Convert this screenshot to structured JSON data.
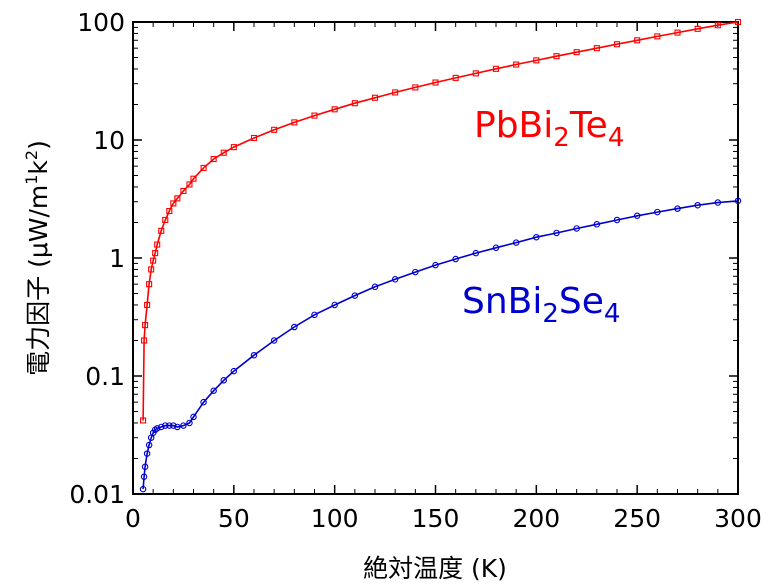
{
  "chart_data": {
    "type": "line",
    "xlabel": "絶対温度 (K)",
    "ylabel": "電力因子 (μW/m¹k²)",
    "ylabel_parts": {
      "prefix": "電力因子 (μW/m",
      "sup1": "1",
      "mid": "k",
      "sup2": "2",
      "suffix": ")"
    },
    "xlim": [
      0,
      300
    ],
    "ylim": [
      0.01,
      100
    ],
    "yscale": "log",
    "x_ticks": [
      "0",
      "50",
      "100",
      "150",
      "200",
      "250",
      "300"
    ],
    "y_ticks": [
      "0.01",
      "0.1",
      "1",
      "10",
      "100"
    ],
    "grid": false,
    "series": [
      {
        "name": "PbBi2Te4",
        "label_parts": [
          "PbBi",
          "2",
          "Te",
          "4"
        ],
        "color": "#ff0000",
        "x": [
          5,
          5.5,
          6,
          7,
          8,
          9,
          10,
          11,
          12,
          14,
          16,
          18,
          20,
          22,
          25,
          28,
          30,
          35,
          40,
          45,
          50,
          60,
          70,
          80,
          90,
          100,
          110,
          120,
          130,
          140,
          150,
          160,
          170,
          180,
          190,
          200,
          210,
          220,
          230,
          240,
          250,
          260,
          270,
          280,
          290,
          300
        ],
        "y": [
          0.042,
          0.2,
          0.27,
          0.4,
          0.6,
          0.8,
          0.95,
          1.1,
          1.3,
          1.7,
          2.1,
          2.5,
          2.9,
          3.2,
          3.7,
          4.2,
          4.7,
          5.8,
          6.9,
          7.8,
          8.7,
          10.4,
          12.2,
          14.1,
          16.1,
          18.2,
          20.5,
          22.8,
          25.3,
          27.9,
          30.7,
          33.6,
          36.7,
          40.1,
          43.6,
          47.3,
          51.3,
          55.5,
          60,
          64.8,
          70,
          75.5,
          81.3,
          87.5,
          93.9,
          100
        ]
      },
      {
        "name": "SnBi2Se4",
        "label_parts": [
          "SnBi",
          "2",
          "Se",
          "4"
        ],
        "color": "#0000cc",
        "x": [
          5,
          5.5,
          6,
          7,
          8,
          9,
          10,
          11,
          12,
          14,
          16,
          18,
          20,
          22,
          25,
          28,
          30,
          35,
          40,
          45,
          50,
          60,
          70,
          80,
          90,
          100,
          110,
          120,
          130,
          140,
          150,
          160,
          170,
          180,
          190,
          200,
          210,
          220,
          230,
          240,
          250,
          260,
          270,
          280,
          290,
          300
        ],
        "y": [
          0.011,
          0.014,
          0.017,
          0.022,
          0.026,
          0.03,
          0.033,
          0.035,
          0.036,
          0.037,
          0.038,
          0.038,
          0.038,
          0.037,
          0.038,
          0.04,
          0.045,
          0.06,
          0.075,
          0.092,
          0.11,
          0.15,
          0.2,
          0.26,
          0.33,
          0.4,
          0.48,
          0.57,
          0.66,
          0.76,
          0.87,
          0.98,
          1.1,
          1.22,
          1.35,
          1.5,
          1.63,
          1.78,
          1.93,
          2.1,
          2.28,
          2.45,
          2.62,
          2.8,
          2.95,
          3.05
        ]
      }
    ]
  }
}
